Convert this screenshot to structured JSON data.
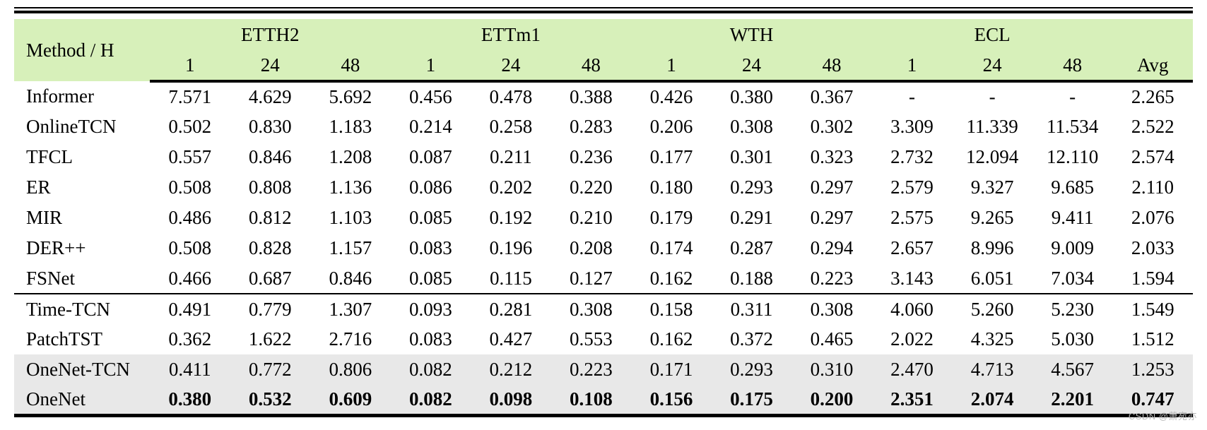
{
  "table": {
    "method_header": "Method / H",
    "avg_header": "Avg",
    "groups": [
      {
        "label": "ETTH2",
        "horizons": [
          "1",
          "24",
          "48"
        ]
      },
      {
        "label": "ETTm1",
        "horizons": [
          "1",
          "24",
          "48"
        ]
      },
      {
        "label": "WTH",
        "horizons": [
          "1",
          "24",
          "48"
        ]
      },
      {
        "label": "ECL",
        "horizons": [
          "1",
          "24",
          "48"
        ]
      }
    ],
    "rows": [
      {
        "method": "Informer",
        "values": [
          "7.571",
          "4.629",
          "5.692",
          "0.456",
          "0.478",
          "0.388",
          "0.426",
          "0.380",
          "0.367",
          "-",
          "-",
          "-",
          "2.265"
        ],
        "shaded": false,
        "bold_values": false,
        "divider_below": false
      },
      {
        "method": "OnlineTCN",
        "values": [
          "0.502",
          "0.830",
          "1.183",
          "0.214",
          "0.258",
          "0.283",
          "0.206",
          "0.308",
          "0.302",
          "3.309",
          "11.339",
          "11.534",
          "2.522"
        ],
        "shaded": false,
        "bold_values": false,
        "divider_below": false
      },
      {
        "method": "TFCL",
        "values": [
          "0.557",
          "0.846",
          "1.208",
          "0.087",
          "0.211",
          "0.236",
          "0.177",
          "0.301",
          "0.323",
          "2.732",
          "12.094",
          "12.110",
          "2.574"
        ],
        "shaded": false,
        "bold_values": false,
        "divider_below": false
      },
      {
        "method": "ER",
        "values": [
          "0.508",
          "0.808",
          "1.136",
          "0.086",
          "0.202",
          "0.220",
          "0.180",
          "0.293",
          "0.297",
          "2.579",
          "9.327",
          "9.685",
          "2.110"
        ],
        "shaded": false,
        "bold_values": false,
        "divider_below": false
      },
      {
        "method": "MIR",
        "values": [
          "0.486",
          "0.812",
          "1.103",
          "0.085",
          "0.192",
          "0.210",
          "0.179",
          "0.291",
          "0.297",
          "2.575",
          "9.265",
          "9.411",
          "2.076"
        ],
        "shaded": false,
        "bold_values": false,
        "divider_below": false
      },
      {
        "method": "DER++",
        "values": [
          "0.508",
          "0.828",
          "1.157",
          "0.083",
          "0.196",
          "0.208",
          "0.174",
          "0.287",
          "0.294",
          "2.657",
          "8.996",
          "9.009",
          "2.033"
        ],
        "shaded": false,
        "bold_values": false,
        "divider_below": false
      },
      {
        "method": "FSNet",
        "values": [
          "0.466",
          "0.687",
          "0.846",
          "0.085",
          "0.115",
          "0.127",
          "0.162",
          "0.188",
          "0.223",
          "3.143",
          "6.051",
          "7.034",
          "1.594"
        ],
        "shaded": false,
        "bold_values": false,
        "divider_below": true
      },
      {
        "method": "Time-TCN",
        "values": [
          "0.491",
          "0.779",
          "1.307",
          "0.093",
          "0.281",
          "0.308",
          "0.158",
          "0.311",
          "0.308",
          "4.060",
          "5.260",
          "5.230",
          "1.549"
        ],
        "shaded": false,
        "bold_values": false,
        "divider_below": false
      },
      {
        "method": "PatchTST",
        "values": [
          "0.362",
          "1.622",
          "2.716",
          "0.083",
          "0.427",
          "0.553",
          "0.162",
          "0.372",
          "0.465",
          "2.022",
          "4.325",
          "5.030",
          "1.512"
        ],
        "shaded": false,
        "bold_values": false,
        "divider_below": false
      },
      {
        "method": "OneNet-TCN",
        "values": [
          "0.411",
          "0.772",
          "0.806",
          "0.082",
          "0.212",
          "0.223",
          "0.171",
          "0.293",
          "0.310",
          "2.470",
          "4.713",
          "4.567",
          "1.253"
        ],
        "shaded": true,
        "bold_values": false,
        "divider_below": false
      },
      {
        "method": "OneNet",
        "values": [
          "0.380",
          "0.532",
          "0.609",
          "0.082",
          "0.098",
          "0.108",
          "0.156",
          "0.175",
          "0.200",
          "2.351",
          "2.074",
          "2.201",
          "0.747"
        ],
        "shaded": true,
        "bold_values": true,
        "divider_below": false
      }
    ]
  },
  "watermark": "CSDN @萧宛亦",
  "colors": {
    "header_bg": "#d7f0ba",
    "shaded_row_bg": "#e8e8e8",
    "rule": "#000000",
    "watermark": "#b8b8b8"
  }
}
